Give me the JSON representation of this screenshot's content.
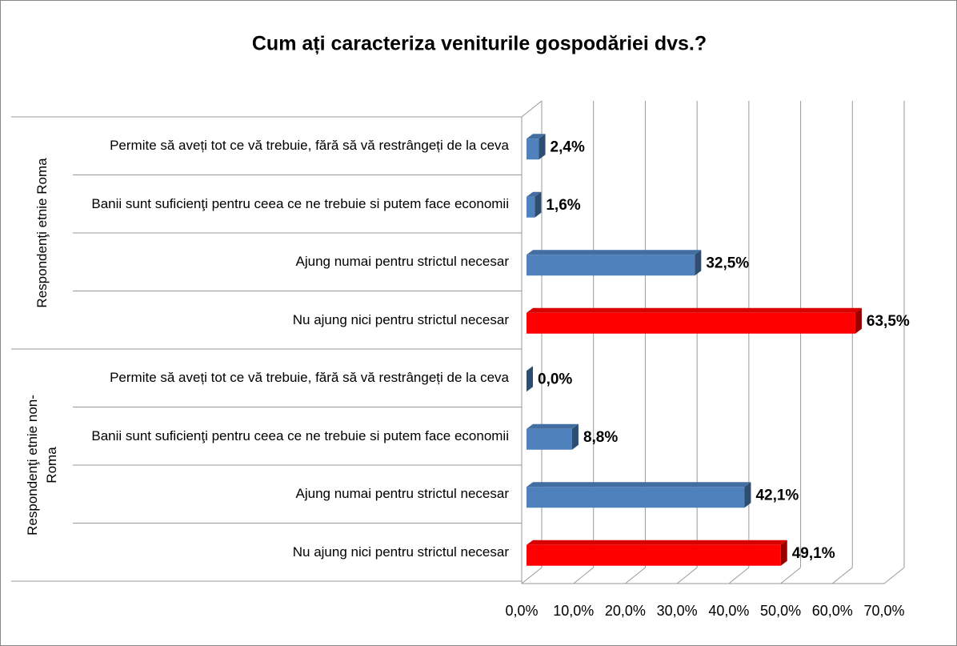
{
  "chart_data": {
    "type": "bar",
    "orientation": "horizontal",
    "title": "Cum ați caracteriza veniturile gospodăriei dvs.?",
    "groups": [
      {
        "name": "Respondenţi etnie Roma",
        "categories": [
          "Permite să aveți tot ce vă trebuie, fără să vă restrângeți de la ceva",
          "Banii sunt suficienţi pentru ceea ce ne trebuie si putem face economii",
          "Ajung numai pentru strictul necesar",
          "Nu ajung nici pentru strictul necesar"
        ],
        "values": [
          2.4,
          1.6,
          32.5,
          63.5
        ],
        "value_labels": [
          "2,4%",
          "1,6%",
          "32,5%",
          "63,5%"
        ],
        "colors": [
          "#4f81bd",
          "#4f81bd",
          "#4f81bd",
          "#ff0000"
        ]
      },
      {
        "name": "Respondenţi etnie non-Roma",
        "categories": [
          "Permite să aveți tot ce vă trebuie, fără să vă restrângeți de la ceva",
          "Banii sunt suficienţi pentru ceea ce ne trebuie si putem face economii",
          "Ajung numai pentru strictul necesar",
          "Nu ajung nici pentru strictul necesar"
        ],
        "values": [
          0.0,
          8.8,
          42.1,
          49.1
        ],
        "value_labels": [
          "0,0%",
          "8,8%",
          "42,1%",
          "49,1%"
        ],
        "colors": [
          "#4f81bd",
          "#4f81bd",
          "#4f81bd",
          "#ff0000"
        ]
      }
    ],
    "xlim": [
      0,
      70
    ],
    "xticks": [
      {
        "value": 0,
        "label": "0,0%"
      },
      {
        "value": 10,
        "label": "10,0%"
      },
      {
        "value": 20,
        "label": "20,0%"
      },
      {
        "value": 30,
        "label": "30,0%"
      },
      {
        "value": 40,
        "label": "40,0%"
      },
      {
        "value": 50,
        "label": "50,0%"
      },
      {
        "value": 60,
        "label": "60,0%"
      },
      {
        "value": 70,
        "label": "70,0%"
      }
    ],
    "grid": true
  }
}
